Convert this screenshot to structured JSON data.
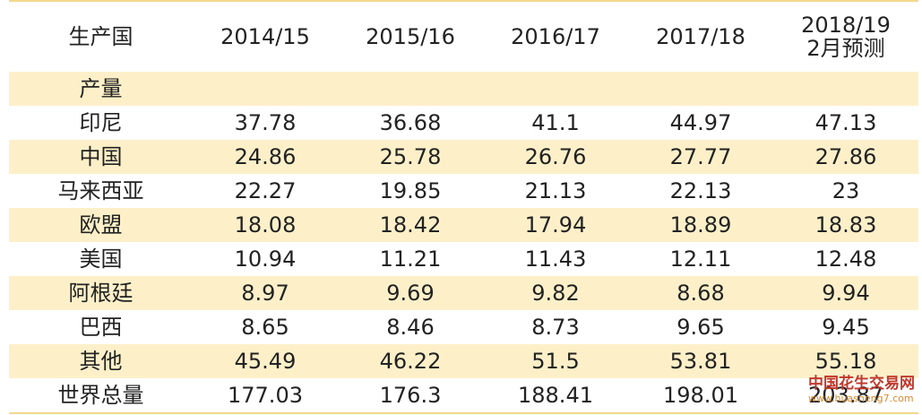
{
  "table": {
    "header": [
      "生产国",
      "2014/15",
      "2015/16",
      "2016/17",
      "2017/18",
      "2018/19\n2月预测"
    ],
    "section": "产量",
    "rows": [
      [
        "印尼",
        "37.78",
        "36.68",
        "41.1",
        "44.97",
        "47.13"
      ],
      [
        "中国",
        "24.86",
        "25.78",
        "26.76",
        "27.77",
        "27.86"
      ],
      [
        "马来西亚",
        "22.27",
        "19.85",
        "21.13",
        "22.13",
        "23"
      ],
      [
        "欧盟",
        "18.08",
        "18.42",
        "17.94",
        "18.89",
        "18.83"
      ],
      [
        "美国",
        "10.94",
        "11.21",
        "11.43",
        "12.11",
        "12.48"
      ],
      [
        "阿根廷",
        "8.97",
        "9.69",
        "9.82",
        "8.68",
        "9.94"
      ],
      [
        "巴西",
        "8.65",
        "8.46",
        "8.73",
        "9.65",
        "9.45"
      ],
      [
        "其他",
        "45.49",
        "46.22",
        "51.5",
        "53.81",
        "55.18"
      ],
      [
        "世界总量",
        "177.03",
        "176.3",
        "188.41",
        "198.01",
        "203.87"
      ]
    ]
  },
  "watermark": {
    "title": "中国花生交易网",
    "url": "www.huasheng7.com"
  }
}
